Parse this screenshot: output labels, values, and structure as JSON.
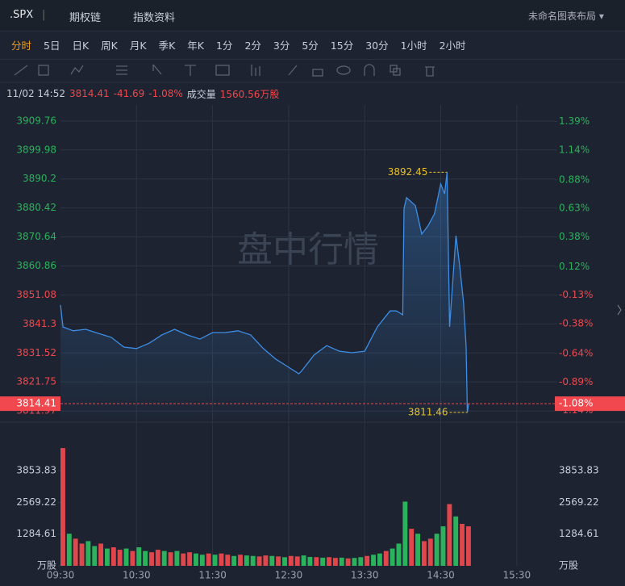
{
  "toolbar": {
    "symbol": ".SPX",
    "links": [
      "期权链",
      "指数资料"
    ],
    "layout": "未命名图表布局"
  },
  "periods": {
    "items": [
      "分时",
      "5日",
      "日K",
      "周K",
      "月K",
      "季K",
      "年K",
      "1分",
      "2分",
      "3分",
      "5分",
      "15分",
      "30分",
      "1小时",
      "2小时"
    ],
    "active": 0
  },
  "quote": {
    "time": "11/02 14:52",
    "price": 3814.41,
    "change": -41.69,
    "change_pct": {
      "value": -1.08,
      "label": "-1.08%"
    },
    "volume_label": "成交量",
    "volume": {
      "value": 1560.56,
      "label": "1560.56万股"
    }
  },
  "chart_data": {
    "type": "line",
    "watermark": "盘中行情",
    "grid": true,
    "xlim": [
      "09:30",
      "16:00"
    ],
    "xticks": [
      "09:30",
      "10:30",
      "11:30",
      "12:30",
      "13:30",
      "14:30",
      "15:30"
    ],
    "ylim": [
      3809,
      3913.8
    ],
    "yticks": [
      3909.76,
      3899.98,
      3890.2,
      3880.42,
      3870.64,
      3860.86,
      3851.08,
      3841.3,
      3831.52,
      3821.75,
      3811.97
    ],
    "y2lim": [
      -1.22,
      1.5
    ],
    "y2ticks": [
      {
        "value": 1.39,
        "label": "1.39%"
      },
      {
        "value": 1.14,
        "label": "1.14%"
      },
      {
        "value": 0.88,
        "label": "0.88%"
      },
      {
        "value": 0.63,
        "label": "0.63%"
      },
      {
        "value": 0.38,
        "label": "0.38%"
      },
      {
        "value": 0.12,
        "label": "0.12%"
      },
      {
        "value": -0.13,
        "label": "-0.13%"
      },
      {
        "value": -0.38,
        "label": "-0.38%"
      },
      {
        "value": -0.64,
        "label": "-0.64%"
      },
      {
        "value": -0.89,
        "label": "-0.89%"
      },
      {
        "value": -1.14,
        "label": "-1.14%"
      }
    ],
    "series": [
      {
        "color": "#3d8ee6",
        "x": [
          "09:30",
          "09:32",
          "09:40",
          "09:50",
          "10:00",
          "10:10",
          "10:20",
          "10:30",
          "10:40",
          "10:50",
          "11:00",
          "11:10",
          "11:20",
          "11:30",
          "11:40",
          "11:50",
          "12:00",
          "12:10",
          "12:20",
          "12:30",
          "12:38",
          "12:40",
          "12:50",
          "13:00",
          "13:10",
          "13:20",
          "13:30",
          "13:40",
          "13:50",
          "13:55",
          "14:00",
          "14:01",
          "14:03",
          "14:10",
          "14:15",
          "14:20",
          "14:25",
          "14:30",
          "14:33",
          "14:35",
          "14:37",
          "14:42",
          "14:45",
          "14:48",
          "14:50",
          "14:51",
          "14:52"
        ],
        "values": [
          3847.7,
          3840.3,
          3839.0,
          3839.5,
          3838.1,
          3836.8,
          3833.5,
          3833.0,
          3834.8,
          3837.6,
          3839.5,
          3837.6,
          3836.2,
          3838.4,
          3838.4,
          3839.0,
          3837.6,
          3833.0,
          3829.4,
          3826.7,
          3824.5,
          3825.3,
          3830.8,
          3834.0,
          3832.1,
          3831.6,
          3832.1,
          3840.3,
          3845.7,
          3845.7,
          3844.4,
          3880.3,
          3883.9,
          3881.2,
          3871.6,
          3874.4,
          3878.4,
          3888.5,
          3885.2,
          3892.45,
          3840.3,
          3871.1,
          3860.7,
          3848.5,
          3833.5,
          3811.46,
          3814.41
        ]
      }
    ],
    "volume": {
      "type": "bar",
      "ylim": [
        0,
        5753
      ],
      "yticks": [
        {
          "value": 0,
          "label": "万股"
        },
        1284.61,
        2569.22,
        3853.83
      ],
      "x": [
        "09:30",
        "09:35",
        "09:40",
        "09:45",
        "09:50",
        "09:55",
        "10:00",
        "10:05",
        "10:10",
        "10:15",
        "10:20",
        "10:25",
        "10:30",
        "10:35",
        "10:40",
        "10:45",
        "10:50",
        "10:55",
        "11:00",
        "11:05",
        "11:10",
        "11:15",
        "11:20",
        "11:25",
        "11:30",
        "11:35",
        "11:40",
        "11:45",
        "11:50",
        "11:55",
        "12:00",
        "12:05",
        "12:10",
        "12:15",
        "12:20",
        "12:25",
        "12:30",
        "12:35",
        "12:40",
        "12:45",
        "12:50",
        "12:55",
        "13:00",
        "13:05",
        "13:10",
        "13:15",
        "13:20",
        "13:25",
        "13:30",
        "13:35",
        "13:40",
        "13:45",
        "13:50",
        "13:55",
        "14:00",
        "14:05",
        "14:10",
        "14:15",
        "14:20",
        "14:25",
        "14:30",
        "14:35",
        "14:40",
        "14:45",
        "14:50"
      ],
      "values": [
        4770,
        1300,
        1100,
        900,
        1000,
        800,
        900,
        700,
        750,
        650,
        700,
        600,
        750,
        600,
        550,
        650,
        600,
        550,
        600,
        500,
        550,
        500,
        450,
        500,
        450,
        500,
        450,
        400,
        450,
        420,
        400,
        380,
        420,
        400,
        380,
        350,
        400,
        380,
        420,
        360,
        350,
        330,
        350,
        320,
        330,
        300,
        320,
        350,
        400,
        450,
        500,
        600,
        700,
        900,
        2600,
        1500,
        1300,
        1000,
        1100,
        1300,
        1600,
        2500,
        2000,
        1700,
        1600
      ],
      "colors": [
        "#e0474c",
        "#2ab35c",
        "#e0474c",
        "#e0474c",
        "#2ab35c",
        "#2ab35c",
        "#e0474c",
        "#2ab35c",
        "#e0474c",
        "#e0474c",
        "#2ab35c",
        "#e0474c",
        "#2ab35c",
        "#2ab35c",
        "#e0474c",
        "#e0474c",
        "#2ab35c",
        "#e0474c",
        "#2ab35c",
        "#e0474c",
        "#e0474c",
        "#2ab35c",
        "#2ab35c",
        "#e0474c",
        "#2ab35c",
        "#e0474c",
        "#e0474c",
        "#2ab35c",
        "#e0474c",
        "#2ab35c",
        "#2ab35c",
        "#e0474c",
        "#e0474c",
        "#2ab35c",
        "#e0474c",
        "#2ab35c",
        "#e0474c",
        "#e0474c",
        "#2ab35c",
        "#2ab35c",
        "#e0474c",
        "#2ab35c",
        "#e0474c",
        "#e0474c",
        "#2ab35c",
        "#e0474c",
        "#2ab35c",
        "#2ab35c",
        "#e0474c",
        "#2ab35c",
        "#2ab35c",
        "#e0474c",
        "#2ab35c",
        "#2ab35c",
        "#2ab35c",
        "#e0474c",
        "#2ab35c",
        "#e0474c",
        "#e0474c",
        "#2ab35c",
        "#2ab35c",
        "#e0474c",
        "#2ab35c",
        "#e0474c",
        "#e0474c"
      ]
    }
  }
}
